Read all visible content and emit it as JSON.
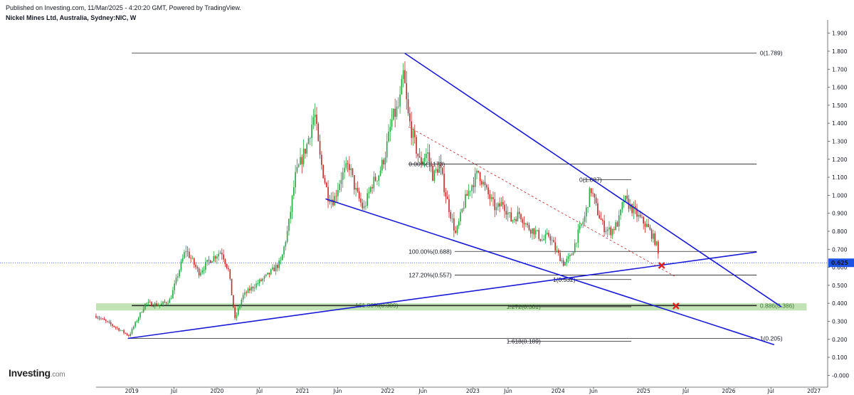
{
  "header": {
    "published": "Published on Investing.com, 11/Mar/2025 - 4:20:20 GMT, Powered by TradingView.",
    "symbol": "Nickel Mines Ltd, Australia, Sydney:NIC, W"
  },
  "logo": {
    "brand": "Investing",
    "suffix": ".com"
  },
  "colors": {
    "trendline": "#1a1ad6",
    "candle_up": "#26a641",
    "candle_down": "#c62828",
    "zone": "#8fcc7a",
    "last_price": "#1e53e5",
    "marker": "#e02020"
  },
  "chart_data": {
    "type": "candlestick",
    "xlabel": "",
    "ylabel": "",
    "ylim": [
      -0.05,
      1.95
    ],
    "x_range": [
      "2018-08-01",
      "2027-03-01"
    ],
    "y_ticks": [
      "1.900",
      "1.800",
      "1.700",
      "1.600",
      "1.500",
      "1.400",
      "1.300",
      "1.200",
      "1.100",
      "1.000",
      "0.900",
      "0.800",
      "0.700",
      "0.600",
      "0.500",
      "0.400",
      "0.300",
      "0.200",
      "0.100",
      "-0.000"
    ],
    "x_ticks": [
      {
        "label": "2019",
        "date": "2019-01-01"
      },
      {
        "label": "Jul",
        "date": "2019-07-01"
      },
      {
        "label": "2020",
        "date": "2020-01-01"
      },
      {
        "label": "Jul",
        "date": "2020-07-01"
      },
      {
        "label": "2021",
        "date": "2021-01-01"
      },
      {
        "label": "Jun",
        "date": "2021-06-01"
      },
      {
        "label": "2022",
        "date": "2022-01-01"
      },
      {
        "label": "Jun",
        "date": "2022-06-01"
      },
      {
        "label": "2023",
        "date": "2023-01-01"
      },
      {
        "label": "Jun",
        "date": "2023-06-01"
      },
      {
        "label": "2024",
        "date": "2024-01-01"
      },
      {
        "label": "Jun",
        "date": "2024-06-01"
      },
      {
        "label": "2025",
        "date": "2025-01-01"
      },
      {
        "label": "Jul",
        "date": "2025-07-01"
      },
      {
        "label": "2026",
        "date": "2026-01-01"
      },
      {
        "label": "Jul",
        "date": "2026-07-01"
      },
      {
        "label": "2027",
        "date": "2027-01-01"
      }
    ],
    "last_price": {
      "value": 0.625,
      "label": "0.625"
    },
    "price_path": [
      [
        "2018-08-01",
        0.33
      ],
      [
        "2018-11-01",
        0.26
      ],
      [
        "2018-12-20",
        0.22
      ],
      [
        "2019-03-01",
        0.4
      ],
      [
        "2019-05-01",
        0.39
      ],
      [
        "2019-06-15",
        0.42
      ],
      [
        "2019-07-15",
        0.55
      ],
      [
        "2019-08-20",
        0.7
      ],
      [
        "2019-10-15",
        0.57
      ],
      [
        "2019-12-01",
        0.64
      ],
      [
        "2020-01-20",
        0.69
      ],
      [
        "2020-02-20",
        0.58
      ],
      [
        "2020-03-18",
        0.31
      ],
      [
        "2020-04-20",
        0.44
      ],
      [
        "2020-06-01",
        0.49
      ],
      [
        "2020-08-01",
        0.55
      ],
      [
        "2020-10-01",
        0.63
      ],
      [
        "2020-11-01",
        0.82
      ],
      [
        "2020-12-01",
        1.1
      ],
      [
        "2021-01-20",
        1.28
      ],
      [
        "2021-02-22",
        1.46
      ],
      [
        "2021-03-15",
        1.22
      ],
      [
        "2021-04-20",
        1.0
      ],
      [
        "2021-05-15",
        0.97
      ],
      [
        "2021-06-15",
        1.1
      ],
      [
        "2021-07-20",
        1.17
      ],
      [
        "2021-08-15",
        1.03
      ],
      [
        "2021-09-20",
        0.92
      ],
      [
        "2021-10-25",
        1.06
      ],
      [
        "2021-11-25",
        1.12
      ],
      [
        "2021-12-20",
        1.22
      ],
      [
        "2022-01-20",
        1.42
      ],
      [
        "2022-02-20",
        1.5
      ],
      [
        "2022-03-10",
        1.68
      ],
      [
        "2022-03-28",
        1.45
      ],
      [
        "2022-04-20",
        1.32
      ],
      [
        "2022-05-20",
        1.18
      ],
      [
        "2022-06-20",
        1.24
      ],
      [
        "2022-07-15",
        1.1
      ],
      [
        "2022-08-10",
        1.17
      ],
      [
        "2022-09-15",
        0.96
      ],
      [
        "2022-10-20",
        0.78
      ],
      [
        "2022-11-25",
        0.96
      ],
      [
        "2022-12-20",
        1.04
      ],
      [
        "2023-01-25",
        1.13
      ],
      [
        "2023-03-01",
        1.02
      ],
      [
        "2023-04-10",
        0.92
      ],
      [
        "2023-05-10",
        0.96
      ],
      [
        "2023-06-15",
        0.86
      ],
      [
        "2023-07-20",
        0.9
      ],
      [
        "2023-08-25",
        0.82
      ],
      [
        "2023-09-25",
        0.8
      ],
      [
        "2023-10-25",
        0.75
      ],
      [
        "2023-11-25",
        0.78
      ],
      [
        "2023-12-20",
        0.7
      ],
      [
        "2024-01-25",
        0.62
      ],
      [
        "2024-02-25",
        0.66
      ],
      [
        "2024-03-25",
        0.78
      ],
      [
        "2024-04-25",
        0.88
      ],
      [
        "2024-05-20",
        1.04
      ],
      [
        "2024-06-15",
        0.92
      ],
      [
        "2024-07-15",
        0.82
      ],
      [
        "2024-08-15",
        0.8
      ],
      [
        "2024-09-15",
        0.85
      ],
      [
        "2024-10-10",
        0.98
      ],
      [
        "2024-11-10",
        0.93
      ],
      [
        "2024-12-10",
        0.88
      ],
      [
        "2025-01-15",
        0.83
      ],
      [
        "2025-02-10",
        0.77
      ],
      [
        "2025-02-25",
        0.73
      ],
      [
        "2025-03-11",
        0.625
      ]
    ],
    "wedge_lines": [
      {
        "from": [
          "2022-03-15",
          1.789
        ],
        "to": [
          "2026-08-15",
          0.38
        ]
      },
      {
        "from": [
          "2021-04-10",
          0.98
        ],
        "to": [
          "2026-07-15",
          0.17
        ]
      },
      {
        "from": [
          "2018-12-15",
          0.205
        ],
        "to": [
          "2026-05-01",
          0.685
        ]
      }
    ],
    "dashed_line": {
      "from": [
        "2022-04-01",
        1.38
      ],
      "to": [
        "2025-05-15",
        0.55
      ]
    },
    "support_zone": {
      "from": [
        "2018-08-01",
        0.36
      ],
      "to": [
        "2026-12-01",
        0.4
      ]
    },
    "fib_lines": [
      {
        "value": 1.789,
        "from": "2019-01-01",
        "to": "2026-05-01",
        "label": "0(1.789)",
        "label_at": "2026-05-15"
      },
      {
        "value": 1.173,
        "from": "2022-04-01",
        "to": "2026-05-01",
        "label": "0.00%(1.173)",
        "label_at": "2022-04-01"
      },
      {
        "value": 0.688,
        "from": "2022-10-15",
        "to": "2026-05-01",
        "label": "100.00%(0.688)",
        "label_at": "2022-04-01"
      },
      {
        "value": 0.557,
        "from": "2022-10-15",
        "to": "2026-05-01",
        "label": "127.20%(0.557)",
        "label_at": "2022-04-01"
      },
      {
        "value": 0.389,
        "from": "2019-01-01",
        "to": "2026-05-01",
        "label": "161.80%(0.389)",
        "label_at": "2021-08-15"
      },
      {
        "value": 1.087,
        "from": "2024-04-20",
        "to": "2024-11-10",
        "label": "0(1.087)",
        "label_at": "2024-04-01"
      },
      {
        "value": 0.532,
        "from": "2023-12-20",
        "to": "2024-11-10",
        "label": "1(0.532)",
        "label_at": "2023-12-10"
      },
      {
        "value": 0.381,
        "from": "2023-06-01",
        "to": "2024-11-10",
        "label": "1.272(0.381)",
        "label_at": "2023-05-25"
      },
      {
        "value": 0.189,
        "from": "2023-06-01",
        "to": "2024-11-10",
        "label": "1.618(0.189)",
        "label_at": "2023-05-25"
      },
      {
        "value": 0.205,
        "from": "2018-12-15",
        "to": "2026-05-01",
        "label": "1(0.205)",
        "label_at": "2026-05-15"
      },
      {
        "value": 0.386,
        "from": "2019-01-01",
        "to": "2026-05-01",
        "label": "0.886(0.386)",
        "label_at": "2026-05-15"
      }
    ],
    "markers": [
      {
        "shape": "x",
        "date": "2025-03-20",
        "value": 0.61
      },
      {
        "shape": "x",
        "date": "2025-05-20",
        "value": 0.385
      }
    ]
  }
}
